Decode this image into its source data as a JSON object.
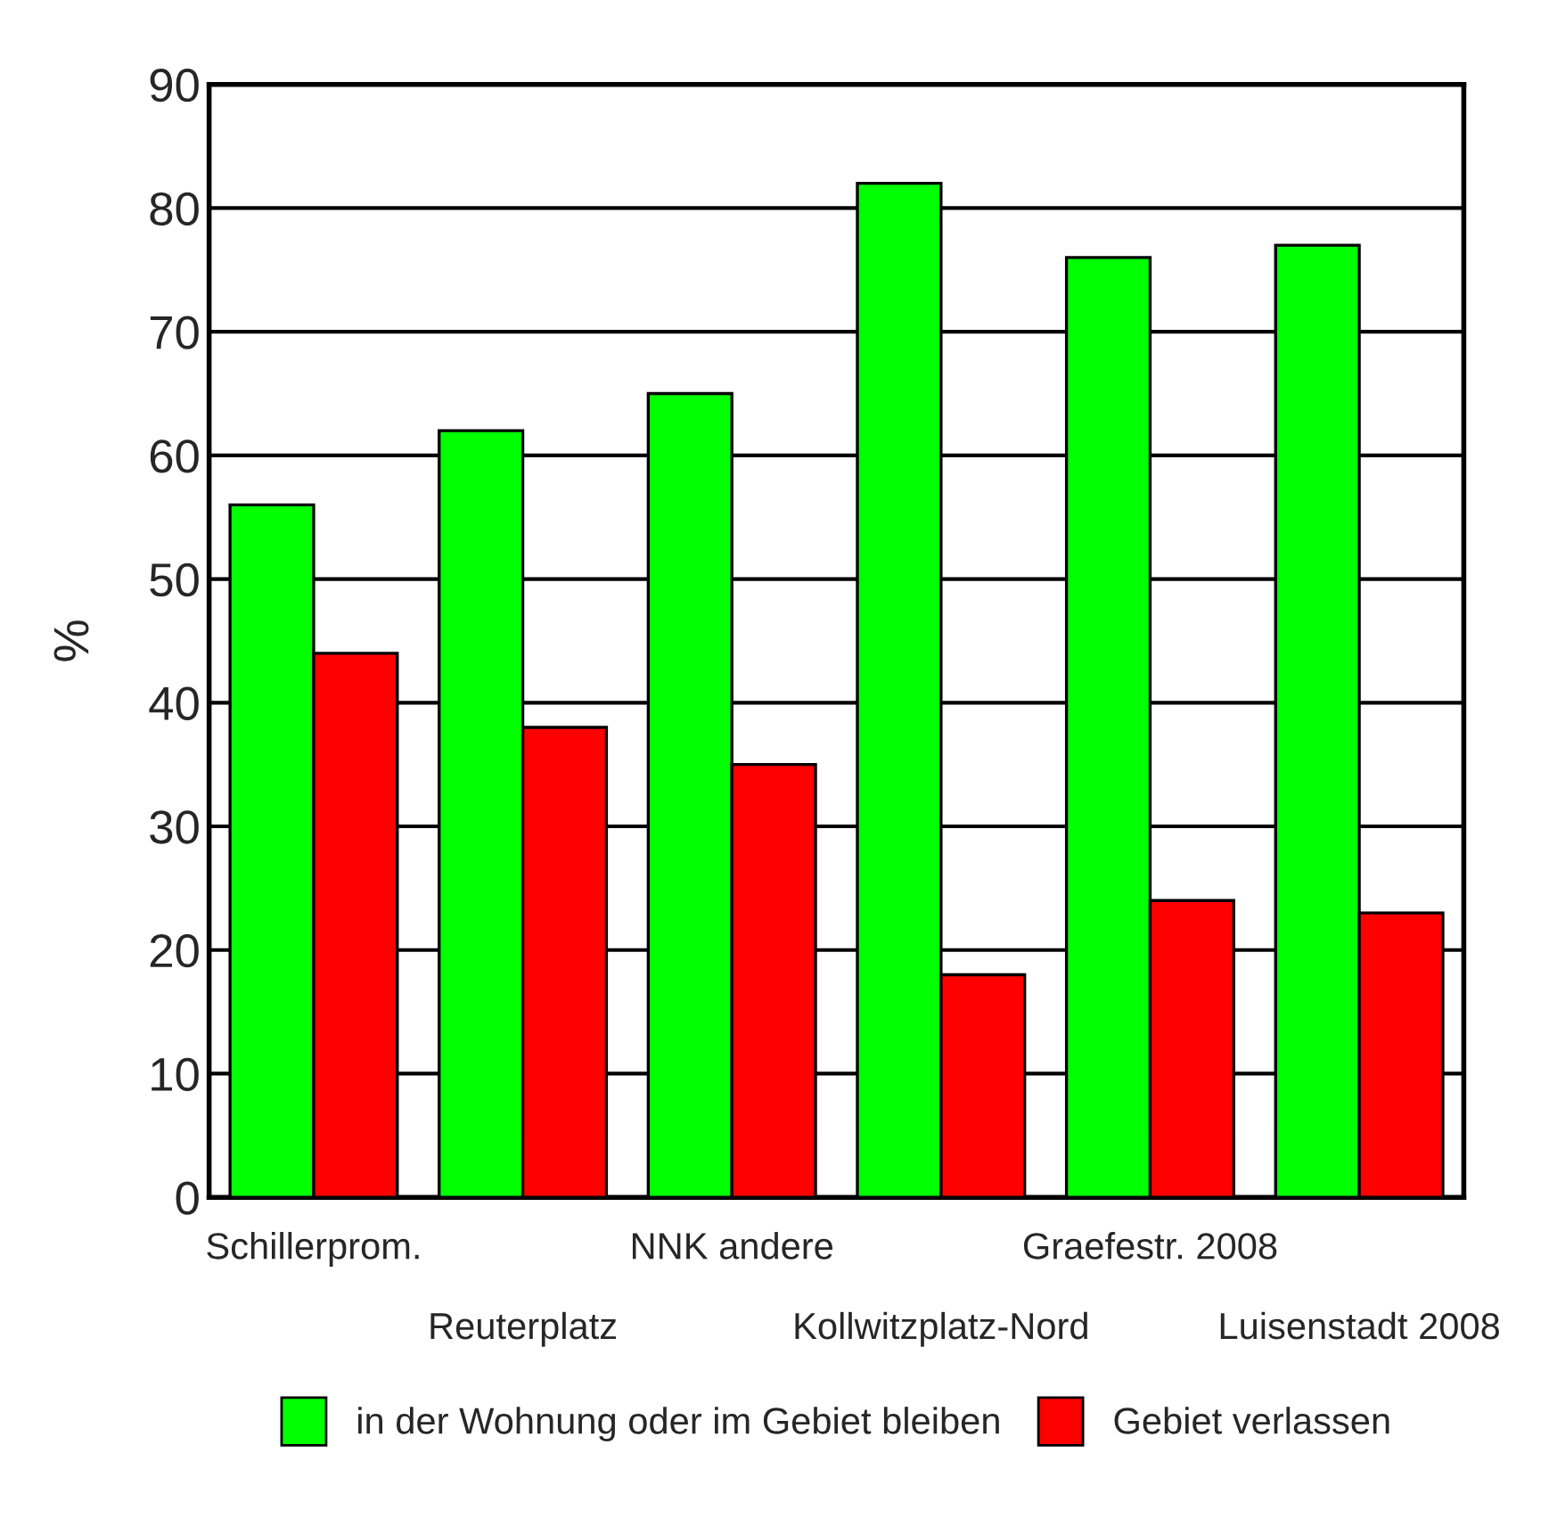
{
  "chart_data": {
    "type": "bar",
    "ylabel": "%",
    "categories": [
      "Schillerprom.",
      "Reuterplatz",
      "NNK andere",
      "Kollwitzplatz-Nord",
      "Graefestr. 2008",
      "Luisenstadt 2008"
    ],
    "series": [
      {
        "name": "in der Wohnung oder im Gebiet bleiben",
        "color": "#00ff00",
        "values": [
          56,
          62,
          65,
          82,
          76,
          77
        ]
      },
      {
        "name": "Gebiet verlassen",
        "color": "#ff0000",
        "values": [
          44,
          38,
          35,
          18,
          24,
          23
        ]
      }
    ],
    "ylim": [
      0,
      90
    ],
    "yticks": [
      0,
      10,
      20,
      30,
      40,
      50,
      60,
      70,
      80,
      90
    ],
    "grid": "y",
    "legend": "bottom"
  }
}
